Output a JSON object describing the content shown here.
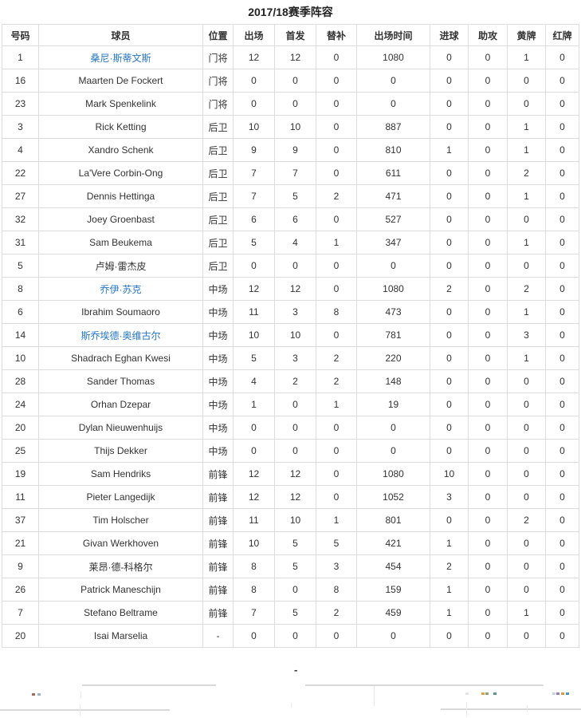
{
  "title": "2017/18赛季阵容",
  "colors": {
    "link_blue": "#2577c8",
    "border_gray": "#dddddd",
    "text_dark": "#333333"
  },
  "table": {
    "headers": [
      "号码",
      "球员",
      "位置",
      "出场",
      "首发",
      "替补",
      "出场时间",
      "进球",
      "助攻",
      "黄牌",
      "红牌"
    ],
    "rows": [
      {
        "number": "1",
        "player": "桑尼·斯蒂文斯",
        "link": true,
        "position": "门将",
        "apps": "12",
        "starts": "12",
        "subs": "0",
        "minutes": "1080",
        "goals": "0",
        "assists": "0",
        "yellow": "1",
        "red": "0"
      },
      {
        "number": "16",
        "player": "Maarten De Fockert",
        "link": false,
        "position": "门将",
        "apps": "0",
        "starts": "0",
        "subs": "0",
        "minutes": "0",
        "goals": "0",
        "assists": "0",
        "yellow": "0",
        "red": "0"
      },
      {
        "number": "23",
        "player": "Mark Spenkelink",
        "link": false,
        "position": "门将",
        "apps": "0",
        "starts": "0",
        "subs": "0",
        "minutes": "0",
        "goals": "0",
        "assists": "0",
        "yellow": "0",
        "red": "0"
      },
      {
        "number": "3",
        "player": "Rick Ketting",
        "link": false,
        "position": "后卫",
        "apps": "10",
        "starts": "10",
        "subs": "0",
        "minutes": "887",
        "goals": "0",
        "assists": "0",
        "yellow": "1",
        "red": "0"
      },
      {
        "number": "4",
        "player": "Xandro Schenk",
        "link": false,
        "position": "后卫",
        "apps": "9",
        "starts": "9",
        "subs": "0",
        "minutes": "810",
        "goals": "1",
        "assists": "0",
        "yellow": "1",
        "red": "0"
      },
      {
        "number": "22",
        "player": "La'Vere Corbin-Ong",
        "link": false,
        "position": "后卫",
        "apps": "7",
        "starts": "7",
        "subs": "0",
        "minutes": "611",
        "goals": "0",
        "assists": "0",
        "yellow": "2",
        "red": "0"
      },
      {
        "number": "27",
        "player": "Dennis Hettinga",
        "link": false,
        "position": "后卫",
        "apps": "7",
        "starts": "5",
        "subs": "2",
        "minutes": "471",
        "goals": "0",
        "assists": "0",
        "yellow": "1",
        "red": "0"
      },
      {
        "number": "32",
        "player": "Joey Groenbast",
        "link": false,
        "position": "后卫",
        "apps": "6",
        "starts": "6",
        "subs": "0",
        "minutes": "527",
        "goals": "0",
        "assists": "0",
        "yellow": "0",
        "red": "0"
      },
      {
        "number": "31",
        "player": "Sam Beukema",
        "link": false,
        "position": "后卫",
        "apps": "5",
        "starts": "4",
        "subs": "1",
        "minutes": "347",
        "goals": "0",
        "assists": "0",
        "yellow": "1",
        "red": "0"
      },
      {
        "number": "5",
        "player": "卢姆·雷杰皮",
        "link": false,
        "position": "后卫",
        "apps": "0",
        "starts": "0",
        "subs": "0",
        "minutes": "0",
        "goals": "0",
        "assists": "0",
        "yellow": "0",
        "red": "0"
      },
      {
        "number": "8",
        "player": "乔伊·苏克",
        "link": true,
        "position": "中场",
        "apps": "12",
        "starts": "12",
        "subs": "0",
        "minutes": "1080",
        "goals": "2",
        "assists": "0",
        "yellow": "2",
        "red": "0"
      },
      {
        "number": "6",
        "player": "Ibrahim Soumaoro",
        "link": false,
        "position": "中场",
        "apps": "11",
        "starts": "3",
        "subs": "8",
        "minutes": "473",
        "goals": "0",
        "assists": "0",
        "yellow": "1",
        "red": "0"
      },
      {
        "number": "14",
        "player": "斯乔埃德·奥维古尔",
        "link": true,
        "position": "中场",
        "apps": "10",
        "starts": "10",
        "subs": "0",
        "minutes": "781",
        "goals": "0",
        "assists": "0",
        "yellow": "3",
        "red": "0"
      },
      {
        "number": "10",
        "player": "Shadrach Eghan Kwesi",
        "link": false,
        "position": "中场",
        "apps": "5",
        "starts": "3",
        "subs": "2",
        "minutes": "220",
        "goals": "0",
        "assists": "0",
        "yellow": "1",
        "red": "0"
      },
      {
        "number": "28",
        "player": "Sander Thomas",
        "link": false,
        "position": "中场",
        "apps": "4",
        "starts": "2",
        "subs": "2",
        "minutes": "148",
        "goals": "0",
        "assists": "0",
        "yellow": "0",
        "red": "0"
      },
      {
        "number": "24",
        "player": "Orhan Dzepar",
        "link": false,
        "position": "中场",
        "apps": "1",
        "starts": "0",
        "subs": "1",
        "minutes": "19",
        "goals": "0",
        "assists": "0",
        "yellow": "0",
        "red": "0"
      },
      {
        "number": "20",
        "player": "Dylan Nieuwenhuijs",
        "link": false,
        "position": "中场",
        "apps": "0",
        "starts": "0",
        "subs": "0",
        "minutes": "0",
        "goals": "0",
        "assists": "0",
        "yellow": "0",
        "red": "0"
      },
      {
        "number": "25",
        "player": "Thijs Dekker",
        "link": false,
        "position": "中场",
        "apps": "0",
        "starts": "0",
        "subs": "0",
        "minutes": "0",
        "goals": "0",
        "assists": "0",
        "yellow": "0",
        "red": "0"
      },
      {
        "number": "19",
        "player": "Sam Hendriks",
        "link": false,
        "position": "前锋",
        "apps": "12",
        "starts": "12",
        "subs": "0",
        "minutes": "1080",
        "goals": "10",
        "assists": "0",
        "yellow": "0",
        "red": "0"
      },
      {
        "number": "11",
        "player": "Pieter Langedijk",
        "link": false,
        "position": "前锋",
        "apps": "12",
        "starts": "12",
        "subs": "0",
        "minutes": "1052",
        "goals": "3",
        "assists": "0",
        "yellow": "0",
        "red": "0"
      },
      {
        "number": "37",
        "player": "Tim Holscher",
        "link": false,
        "position": "前锋",
        "apps": "11",
        "starts": "10",
        "subs": "1",
        "minutes": "801",
        "goals": "0",
        "assists": "0",
        "yellow": "2",
        "red": "0"
      },
      {
        "number": "21",
        "player": "Givan Werkhoven",
        "link": false,
        "position": "前锋",
        "apps": "10",
        "starts": "5",
        "subs": "5",
        "minutes": "421",
        "goals": "1",
        "assists": "0",
        "yellow": "0",
        "red": "0"
      },
      {
        "number": "9",
        "player": "莱昂·德-科格尔",
        "link": false,
        "position": "前锋",
        "apps": "8",
        "starts": "5",
        "subs": "3",
        "minutes": "454",
        "goals": "2",
        "assists": "0",
        "yellow": "0",
        "red": "0"
      },
      {
        "number": "26",
        "player": "Patrick Maneschijn",
        "link": false,
        "position": "前锋",
        "apps": "8",
        "starts": "0",
        "subs": "8",
        "minutes": "159",
        "goals": "1",
        "assists": "0",
        "yellow": "0",
        "red": "0"
      },
      {
        "number": "7",
        "player": "Stefano Beltrame",
        "link": false,
        "position": "前锋",
        "apps": "7",
        "starts": "5",
        "subs": "2",
        "minutes": "459",
        "goals": "1",
        "assists": "0",
        "yellow": "1",
        "red": "0"
      },
      {
        "number": "20",
        "player": "Isai Marselia",
        "link": false,
        "position": "-",
        "apps": "0",
        "starts": "0",
        "subs": "0",
        "minutes": "0",
        "goals": "0",
        "assists": "0",
        "yellow": "0",
        "red": "0"
      }
    ]
  },
  "footer": {
    "placeholder_dash": "-"
  }
}
